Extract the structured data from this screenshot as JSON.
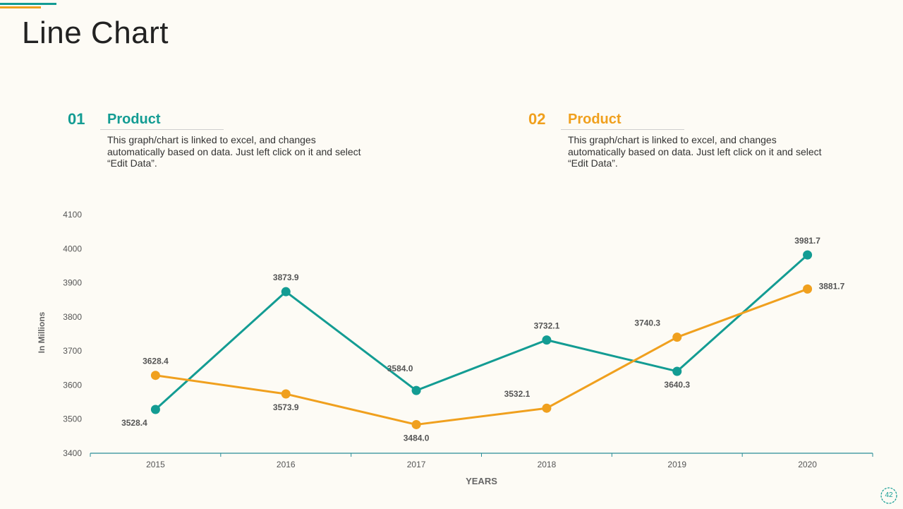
{
  "page": {
    "title": "Line Chart",
    "page_number": "42"
  },
  "legend": [
    {
      "number": "01",
      "title": "Product",
      "description": "This graph/chart is linked to excel, and changes automatically based on data. Just left click on it and select “Edit Data”.",
      "color": "#139c93"
    },
    {
      "number": "02",
      "title": "Product",
      "description": "This graph/chart is linked to excel, and changes automatically based on data. Just left click on it and select “Edit Data”.",
      "color": "#f0a01e"
    }
  ],
  "chart_data": {
    "type": "line",
    "title": "",
    "xlabel": "YEARS",
    "ylabel": "In Millions",
    "categories": [
      "2015",
      "2016",
      "2017",
      "2018",
      "2019",
      "2020"
    ],
    "ylim": [
      3400,
      4100
    ],
    "yticks": [
      3400,
      3500,
      3600,
      3700,
      3800,
      3900,
      4000,
      4100
    ],
    "grid": false,
    "series": [
      {
        "name": "Product 01",
        "color": "#139c93",
        "values": [
          3528.4,
          3873.9,
          3584.0,
          3732.1,
          3640.3,
          3981.7
        ],
        "labels": [
          "3528.4",
          "3873.9",
          "3584.0",
          "3732.1",
          "3640.3",
          "3981.7"
        ]
      },
      {
        "name": "Product 02",
        "color": "#f0a01e",
        "values": [
          3628.4,
          3573.9,
          3484.0,
          3532.1,
          3740.3,
          3881.7
        ],
        "labels": [
          "3628.4",
          "3573.9",
          "3484.0",
          "3532.1",
          "3740.3",
          "3881.7"
        ]
      }
    ]
  }
}
